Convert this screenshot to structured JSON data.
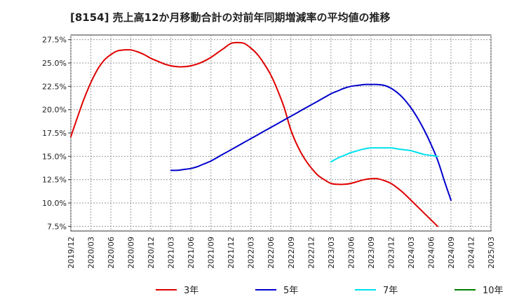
{
  "chart_data": {
    "type": "line",
    "title": "[8154]  売上高12か月移動合計の対前年同期増減率の平均値の推移",
    "xlabel": "",
    "ylabel": "",
    "x_ticks": [
      "2019/12",
      "2020/03",
      "2020/06",
      "2020/09",
      "2020/12",
      "2021/03",
      "2021/06",
      "2021/09",
      "2021/12",
      "2022/03",
      "2022/06",
      "2022/09",
      "2022/12",
      "2023/03",
      "2023/06",
      "2023/09",
      "2023/12",
      "2024/03",
      "2024/06",
      "2024/09",
      "2024/12",
      "2025/03"
    ],
    "y_ticks": [
      "7.5%",
      "10.0%",
      "12.5%",
      "15.0%",
      "17.5%",
      "20.0%",
      "22.5%",
      "25.0%",
      "27.5%"
    ],
    "ylim": [
      7.0,
      28.0
    ],
    "grid": true,
    "legend_position": "bottom",
    "series": [
      {
        "name": "3年",
        "color": "#e00000",
        "start_index": 0,
        "values": [
          17.1,
          19.2,
          21.2,
          22.9,
          24.3,
          25.3,
          25.9,
          26.3,
          26.4,
          26.4,
          26.2,
          25.9,
          25.5,
          25.2,
          24.9,
          24.7,
          24.6,
          24.6,
          24.7,
          24.9,
          25.2,
          25.6,
          26.1,
          26.6,
          27.1,
          27.2,
          27.1,
          26.6,
          25.9,
          24.9,
          23.7,
          22.1,
          20.2,
          17.8,
          16.1,
          14.8,
          13.8,
          13.0,
          12.5,
          12.1,
          12.0,
          12.0,
          12.1,
          12.3,
          12.5,
          12.6,
          12.6,
          12.4,
          12.1,
          11.6,
          11.0,
          10.3,
          9.6,
          8.9,
          8.2,
          7.5
        ]
      },
      {
        "name": "5年",
        "color": "#0000cc",
        "start_index": 15,
        "values": [
          13.5,
          13.5,
          13.6,
          13.7,
          13.9,
          14.2,
          14.5,
          14.9,
          15.3,
          15.7,
          16.1,
          16.5,
          16.9,
          17.3,
          17.7,
          18.1,
          18.5,
          18.9,
          19.3,
          19.7,
          20.1,
          20.5,
          20.9,
          21.3,
          21.7,
          22.0,
          22.3,
          22.5,
          22.6,
          22.7,
          22.7,
          22.7,
          22.6,
          22.3,
          21.8,
          21.1,
          20.2,
          19.1,
          17.8,
          16.3,
          14.6,
          12.4,
          10.3
        ]
      },
      {
        "name": "7年",
        "color": "#00e0ee",
        "start_index": 39,
        "values": [
          14.4,
          14.8,
          15.1,
          15.4,
          15.6,
          15.8,
          15.9,
          15.9,
          15.9,
          15.9,
          15.8,
          15.7,
          15.6,
          15.4,
          15.2,
          15.1,
          15.0
        ]
      },
      {
        "name": "10年",
        "color": "#008000",
        "start_index": 0,
        "values": []
      }
    ]
  }
}
